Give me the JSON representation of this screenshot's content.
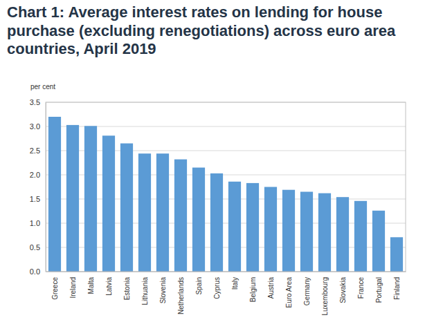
{
  "chart_data": {
    "type": "bar",
    "title": "Chart 1: Average interest rates on lending for house purchase (excluding renegotiations) across euro area countries, April 2019",
    "y_label": "per cent",
    "categories": [
      "Greece",
      "Ireland",
      "Malta",
      "Latvia",
      "Estonia",
      "Lithuania",
      "Slovenia",
      "Netherlands",
      "Spain",
      "Cyprus",
      "Italy",
      "Belgium",
      "Austria",
      "Euro Area",
      "Germany",
      "Luxembourg",
      "Slovakia",
      "France",
      "Portugal",
      "Finland"
    ],
    "values": [
      3.2,
      3.03,
      3.01,
      2.81,
      2.65,
      2.44,
      2.44,
      2.32,
      2.15,
      2.03,
      1.86,
      1.83,
      1.75,
      1.69,
      1.65,
      1.62,
      1.54,
      1.46,
      1.26,
      0.71
    ],
    "color": "#5b9bd5",
    "ylim": [
      0,
      3.5
    ],
    "yticks": [
      {
        "value": 0,
        "label": "0.0"
      },
      0.5,
      {
        "value": 1,
        "label": "1.0"
      },
      1.5,
      {
        "value": 2,
        "label": "2.0"
      },
      2.5,
      {
        "value": 3,
        "label": "3.0"
      },
      3.5
    ],
    "grid": true
  }
}
